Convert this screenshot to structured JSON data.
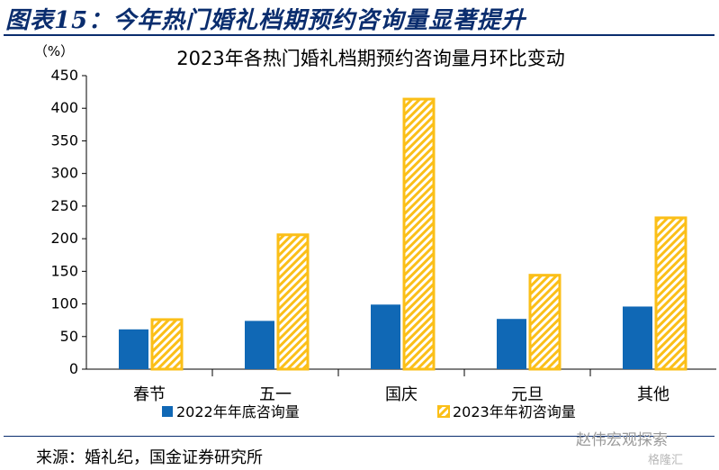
{
  "header": {
    "title": "图表15：今年热门婚礼档期预约咨询量显著提升"
  },
  "footer": {
    "source": "来源：婚礼纪，国金证券研究所",
    "watermark": "赵伟宏观探索",
    "watermark_logo": "格隆汇"
  },
  "chart_data": {
    "type": "bar",
    "title": "2023年各热门婚礼档期预约咨询量月环比变动",
    "ylabel": "（%）",
    "xlabel": "",
    "categories": [
      "春节",
      "五一",
      "国庆",
      "元旦",
      "其他"
    ],
    "series": [
      {
        "name": "2022年年底咨询量",
        "values": [
          61,
          74,
          99,
          77,
          96
        ],
        "color": "#1068b5",
        "pattern": "solid"
      },
      {
        "name": "2023年年初咨询量",
        "values": [
          76,
          206,
          414,
          144,
          232
        ],
        "color": "#fbbf18",
        "pattern": "hatched"
      }
    ],
    "ylim": [
      0,
      450
    ],
    "yticks": [
      0,
      50,
      100,
      150,
      200,
      250,
      300,
      350,
      400,
      450
    ],
    "grid": false,
    "legend": "bottom"
  }
}
